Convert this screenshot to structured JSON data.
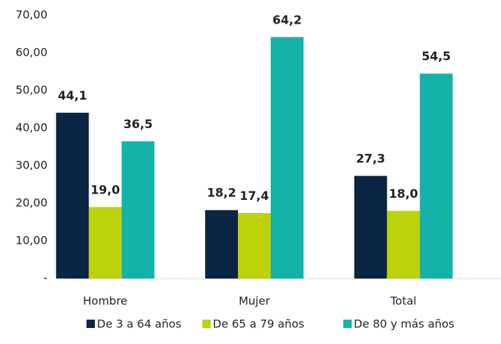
{
  "chart_data": {
    "type": "bar",
    "categories": [
      "Hombre",
      "Mujer",
      "Total"
    ],
    "series": [
      {
        "name": "De 3 a 64 años",
        "color": "#0b2545",
        "values": [
          44.1,
          18.2,
          27.3
        ],
        "value_labels": [
          "44,1",
          "18,2",
          "27,3"
        ]
      },
      {
        "name": "De 65 a 79 años",
        "color": "#bcd20a",
        "values": [
          19.0,
          17.4,
          18.0
        ],
        "value_labels": [
          "19,0",
          "17,4",
          "18,0"
        ]
      },
      {
        "name": "De 80 y más años",
        "color": "#14b2a8",
        "values": [
          36.5,
          64.2,
          54.5
        ],
        "value_labels": [
          "36,5",
          "64,2",
          "54,5"
        ]
      }
    ],
    "ylim": [
      0,
      70
    ],
    "yticks": [
      {
        "value": 0,
        "label": "-"
      },
      {
        "value": 10,
        "label": "10,00"
      },
      {
        "value": 20,
        "label": "20,00"
      },
      {
        "value": 30,
        "label": "30,00"
      },
      {
        "value": 40,
        "label": "40,00"
      },
      {
        "value": 50,
        "label": "50,00"
      },
      {
        "value": 60,
        "label": "60,00"
      },
      {
        "value": 70,
        "label": "70,00"
      }
    ],
    "legend": "bottom"
  }
}
